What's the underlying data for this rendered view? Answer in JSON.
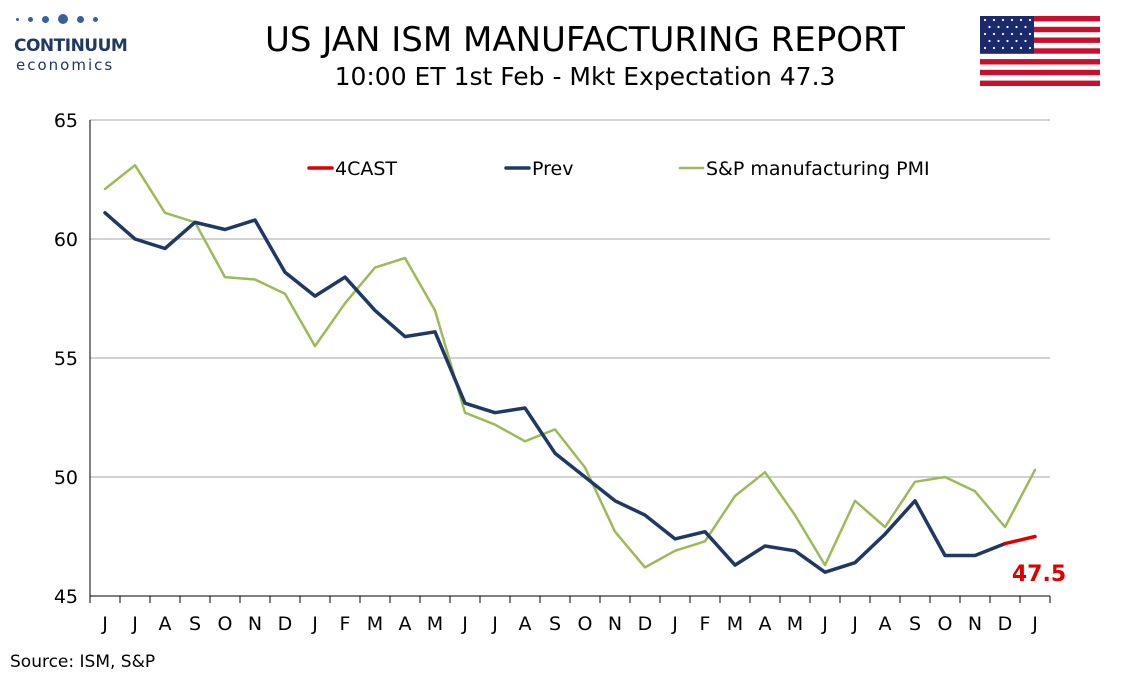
{
  "logo": {
    "name": "CONTINUUM",
    "tagline": "economics"
  },
  "header": {
    "title": "US JAN ISM MANUFACTURING REPORT",
    "subtitle": "10:00 ET 1st Feb - Mkt Expectation 47.3"
  },
  "source": "Source: ISM, S&P",
  "flag": {
    "icon": "us-flag-icon"
  },
  "colors": {
    "forecast": "#e00000",
    "prev": "#1f3864",
    "spglobal": "#9bbb59",
    "grid": "#a6a6a6",
    "forecast_label": "#e00000"
  },
  "chart_data": {
    "type": "line",
    "title": "US JAN ISM MANUFACTURING REPORT",
    "xlabel": "",
    "ylabel": "",
    "ylim": [
      45,
      65
    ],
    "yticks": [
      45,
      50,
      55,
      60,
      65
    ],
    "grid": true,
    "legend_position": "top",
    "categories": [
      "J",
      "J",
      "A",
      "S",
      "O",
      "N",
      "D",
      "J",
      "F",
      "M",
      "A",
      "M",
      "J",
      "J",
      "A",
      "S",
      "O",
      "N",
      "D",
      "J",
      "F",
      "M",
      "A",
      "M",
      "J",
      "J",
      "A",
      "S",
      "O",
      "N",
      "D",
      "J"
    ],
    "series": [
      {
        "name": "4CAST",
        "values": [
          null,
          null,
          null,
          null,
          null,
          null,
          null,
          null,
          null,
          null,
          null,
          null,
          null,
          null,
          null,
          null,
          null,
          null,
          null,
          null,
          null,
          null,
          null,
          null,
          null,
          null,
          null,
          null,
          null,
          null,
          47.2,
          47.5
        ]
      },
      {
        "name": "Prev",
        "values": [
          61.1,
          60.0,
          59.6,
          60.7,
          60.4,
          60.8,
          58.6,
          57.6,
          58.4,
          57.0,
          55.9,
          56.1,
          53.1,
          52.7,
          52.9,
          51.0,
          50.0,
          49.0,
          48.4,
          47.4,
          47.7,
          46.3,
          47.1,
          46.9,
          46.0,
          46.4,
          47.6,
          49.0,
          46.7,
          46.7,
          47.2,
          null
        ]
      },
      {
        "name": "S&P manufacturing PMI",
        "values": [
          62.1,
          63.1,
          61.1,
          60.7,
          58.4,
          58.3,
          57.7,
          55.5,
          57.3,
          58.8,
          59.2,
          57.0,
          52.7,
          52.2,
          51.5,
          52.0,
          50.4,
          47.7,
          46.2,
          46.9,
          47.3,
          49.2,
          50.2,
          48.4,
          46.3,
          49.0,
          47.9,
          49.8,
          50.0,
          49.4,
          47.9,
          50.3
        ]
      }
    ],
    "annotations": [
      {
        "text": "47.5",
        "series": "4CAST",
        "index": 31
      }
    ]
  }
}
